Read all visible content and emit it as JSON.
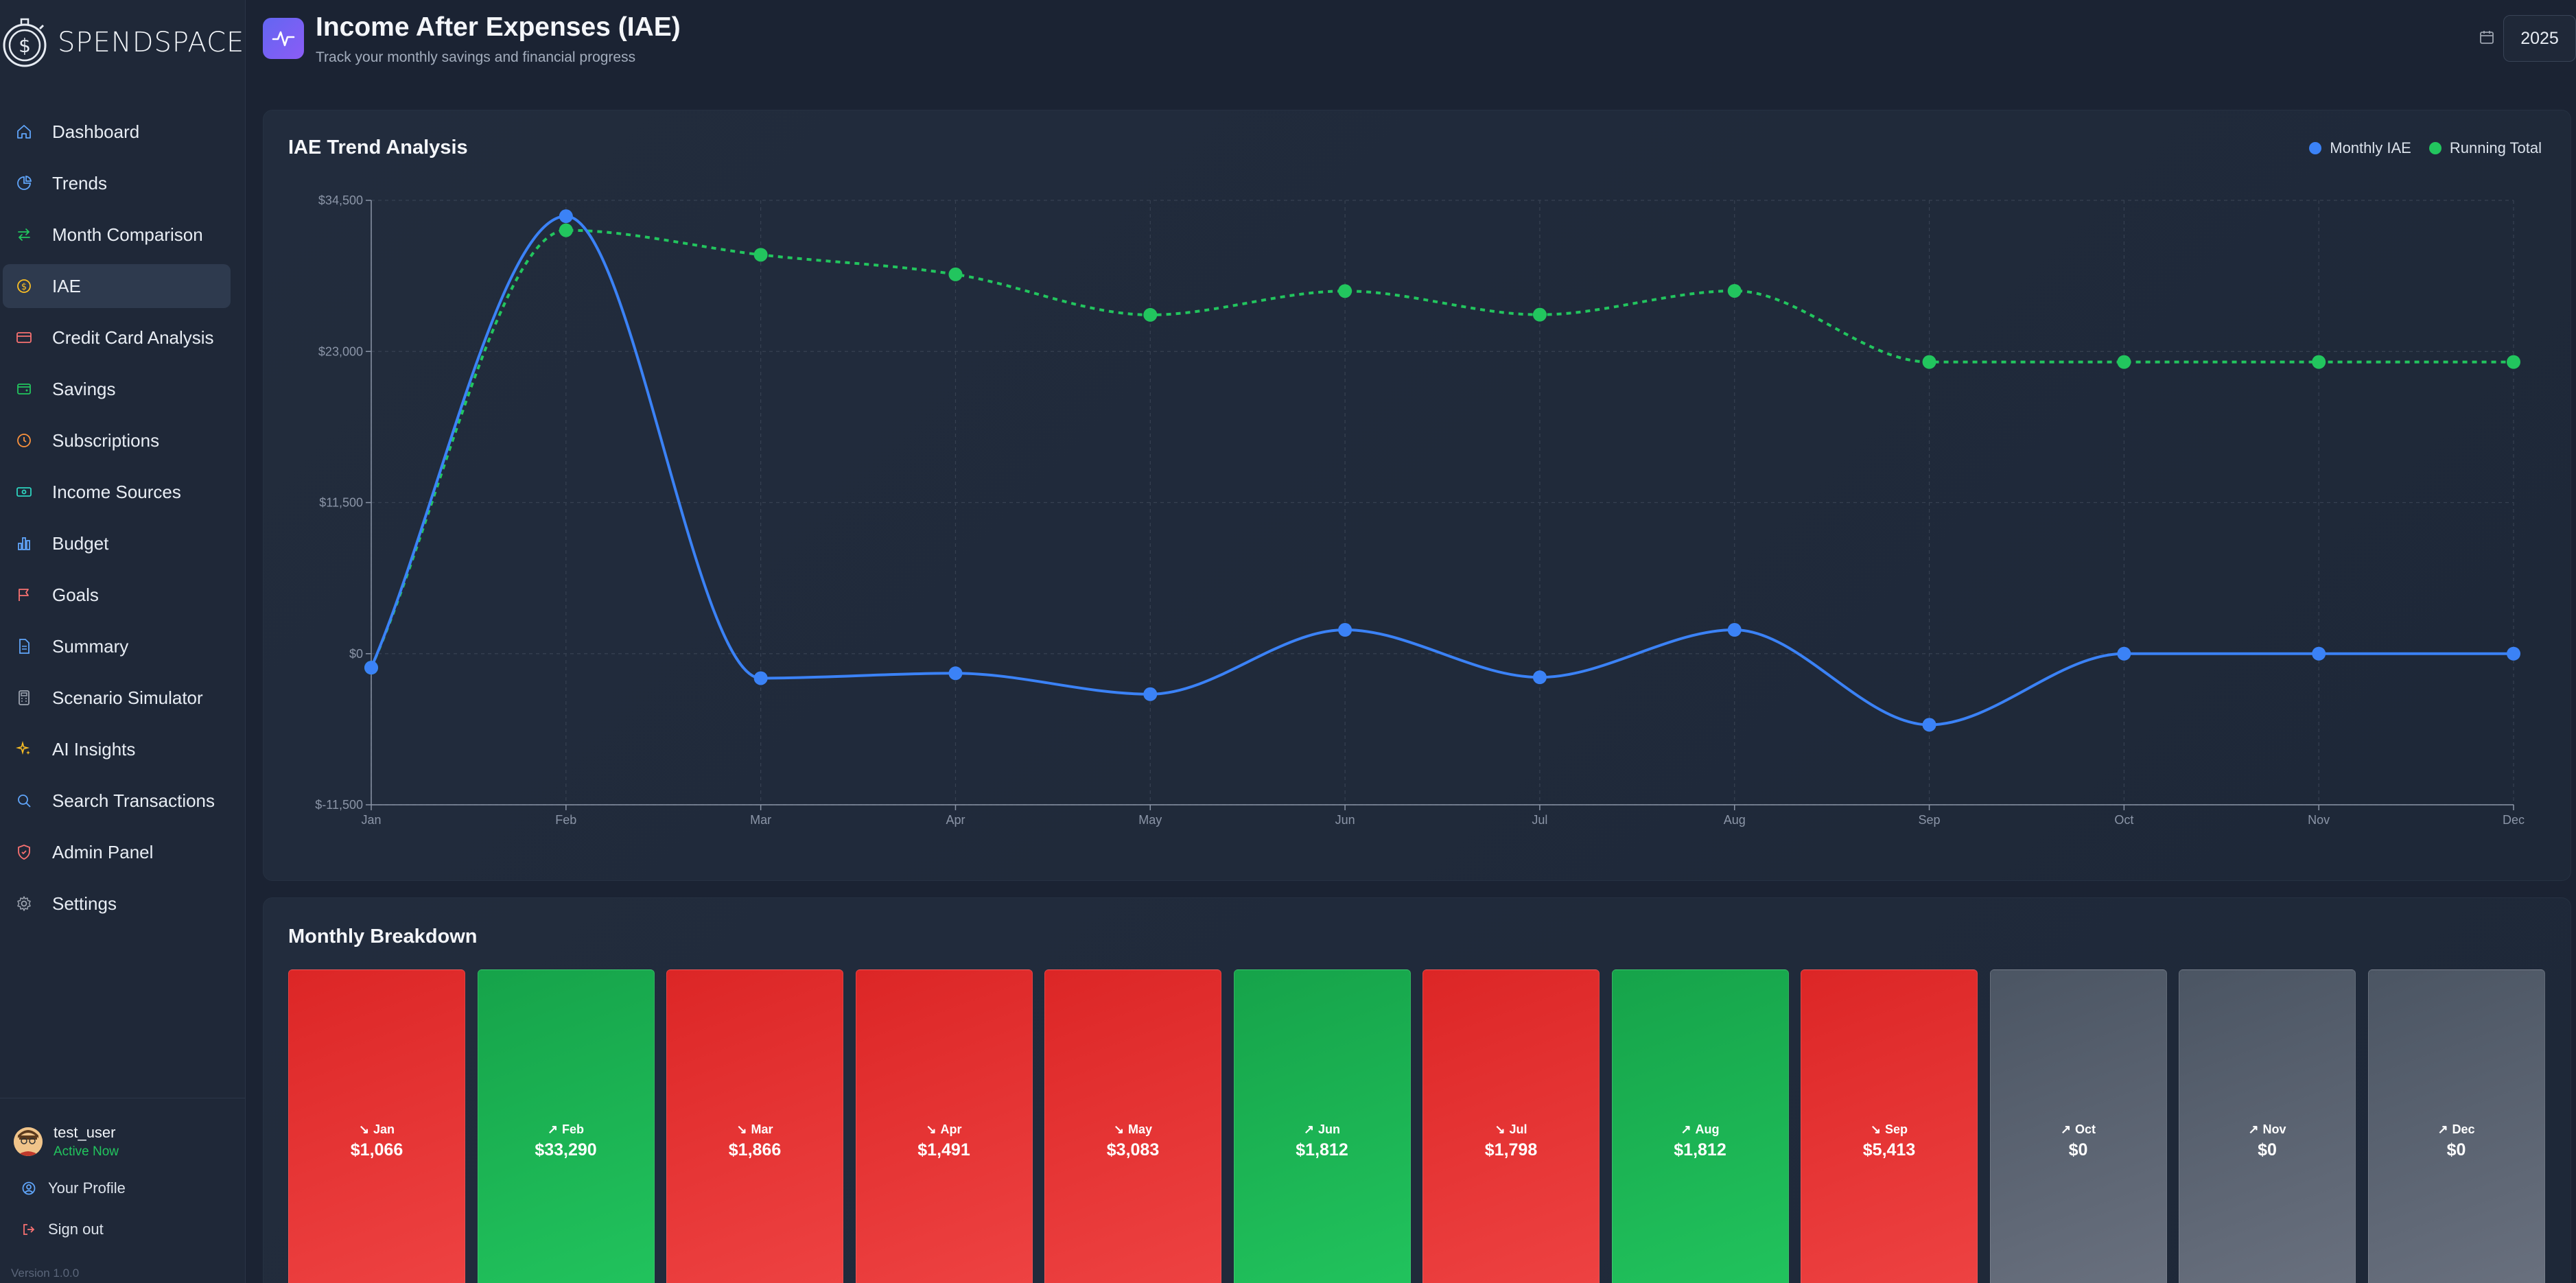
{
  "app": {
    "brand": "SPENDSPACE",
    "version": "Version 1.0.0"
  },
  "sidebar": {
    "items": [
      {
        "label": "Dashboard",
        "icon": "home-icon",
        "color": "#60a5fa"
      },
      {
        "label": "Trends",
        "icon": "pie-chart-icon",
        "color": "#60a5fa"
      },
      {
        "label": "Month Comparison",
        "icon": "arrows-swap-icon",
        "color": "#22c55e"
      },
      {
        "label": "IAE",
        "icon": "dollar-circle-icon",
        "color": "#fbbf24",
        "active": true
      },
      {
        "label": "Credit Card Analysis",
        "icon": "credit-card-icon",
        "color": "#f87171"
      },
      {
        "label": "Savings",
        "icon": "wallet-icon",
        "color": "#22c55e"
      },
      {
        "label": "Subscriptions",
        "icon": "clock-icon",
        "color": "#fb923c"
      },
      {
        "label": "Income Sources",
        "icon": "banknote-icon",
        "color": "#2dd4bf"
      },
      {
        "label": "Budget",
        "icon": "bar-chart-icon",
        "color": "#60a5fa"
      },
      {
        "label": "Goals",
        "icon": "flag-icon",
        "color": "#f87171"
      },
      {
        "label": "Summary",
        "icon": "document-icon",
        "color": "#60a5fa"
      },
      {
        "label": "Scenario Simulator",
        "icon": "calculator-icon",
        "color": "#9ca3af"
      },
      {
        "label": "AI Insights",
        "icon": "sparkles-icon",
        "color": "#fbbf24"
      },
      {
        "label": "Search Transactions",
        "icon": "search-icon",
        "color": "#60a5fa"
      },
      {
        "label": "Admin Panel",
        "icon": "shield-icon",
        "color": "#f87171"
      },
      {
        "label": "Settings",
        "icon": "gear-icon",
        "color": "#9ca3af"
      }
    ]
  },
  "user": {
    "name": "test_user",
    "status": "Active Now",
    "profile_label": "Your Profile",
    "signout_label": "Sign out"
  },
  "header": {
    "title": "Income After Expenses (IAE)",
    "subtitle": "Track your monthly savings and financial progress",
    "year": "2025"
  },
  "chart_data": {
    "type": "line",
    "title": "IAE Trend Analysis",
    "categories": [
      "Jan",
      "Feb",
      "Mar",
      "Apr",
      "May",
      "Jun",
      "Jul",
      "Aug",
      "Sep",
      "Oct",
      "Nov",
      "Dec"
    ],
    "series": [
      {
        "name": "Monthly IAE",
        "color": "#3b82f6",
        "style": "solid",
        "values": [
          -1066,
          33290,
          -1866,
          -1491,
          -3083,
          1812,
          -1798,
          1812,
          -5413,
          0,
          0,
          0
        ]
      },
      {
        "name": "Running Total",
        "color": "#22c55e",
        "style": "dashed",
        "values": [
          -1066,
          32224,
          30358,
          28867,
          25784,
          27596,
          25798,
          27610,
          22197,
          22197,
          22197,
          22197
        ]
      }
    ],
    "ylim": [
      -11500,
      34500
    ],
    "yticks": [
      -11500,
      0,
      11500,
      23000,
      34500
    ],
    "ytick_labels": [
      "$-11,500",
      "$0",
      "$11,500",
      "$23,000",
      "$34,500"
    ],
    "grid": true,
    "legend_position": "top-right"
  },
  "breakdown": {
    "title": "Monthly Breakdown",
    "months": [
      {
        "month": "Jan",
        "value": "$1,066",
        "status": "neg",
        "trend": "↘"
      },
      {
        "month": "Feb",
        "value": "$33,290",
        "status": "pos",
        "trend": "↗"
      },
      {
        "month": "Mar",
        "value": "$1,866",
        "status": "neg",
        "trend": "↘"
      },
      {
        "month": "Apr",
        "value": "$1,491",
        "status": "neg",
        "trend": "↘"
      },
      {
        "month": "May",
        "value": "$3,083",
        "status": "neg",
        "trend": "↘"
      },
      {
        "month": "Jun",
        "value": "$1,812",
        "status": "pos",
        "trend": "↗"
      },
      {
        "month": "Jul",
        "value": "$1,798",
        "status": "neg",
        "trend": "↘"
      },
      {
        "month": "Aug",
        "value": "$1,812",
        "status": "pos",
        "trend": "↗"
      },
      {
        "month": "Sep",
        "value": "$5,413",
        "status": "neg",
        "trend": "↘"
      },
      {
        "month": "Oct",
        "value": "$0",
        "status": "zero",
        "trend": "↗"
      },
      {
        "month": "Nov",
        "value": "$0",
        "status": "zero",
        "trend": "↗"
      },
      {
        "month": "Dec",
        "value": "$0",
        "status": "zero",
        "trend": "↗"
      }
    ]
  }
}
